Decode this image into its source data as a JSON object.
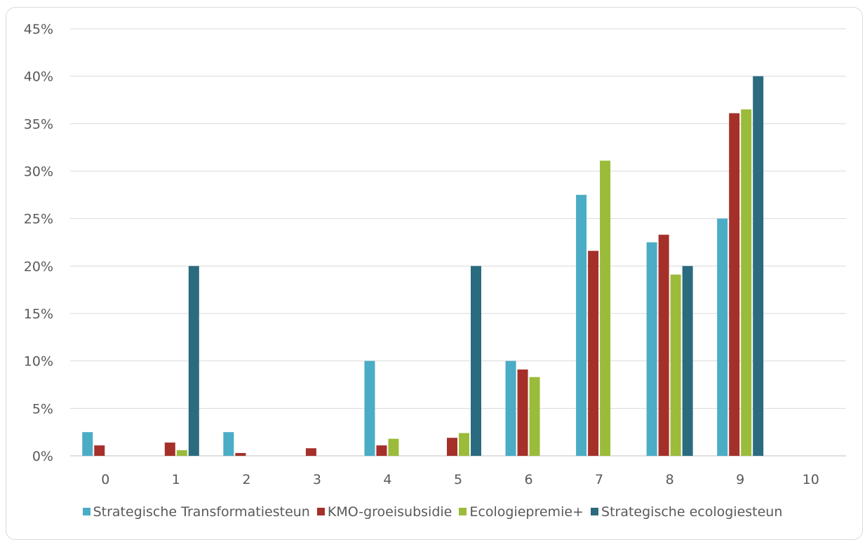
{
  "chart_data": {
    "type": "bar",
    "title": "",
    "xlabel": "",
    "ylabel": "",
    "categories": [
      "0",
      "1",
      "2",
      "3",
      "4",
      "5",
      "6",
      "7",
      "8",
      "9",
      "10"
    ],
    "ylim": [
      0,
      45
    ],
    "yticks": [
      "0%",
      "5%",
      "10%",
      "15%",
      "20%",
      "25%",
      "30%",
      "35%",
      "40%",
      "45%"
    ],
    "grid": true,
    "legend_position": "bottom",
    "series": [
      {
        "name": "Strategische Transformatiesteun",
        "color": "#4bacc6",
        "values": [
          2.5,
          0,
          2.5,
          0,
          10,
          0,
          10,
          27.5,
          22.5,
          25,
          0
        ]
      },
      {
        "name": "KMO-groeisubsidie",
        "color": "#a5302a",
        "values": [
          1.1,
          1.4,
          0.3,
          0.8,
          1.1,
          1.9,
          9.1,
          21.6,
          23.3,
          36.1,
          0
        ]
      },
      {
        "name": "Ecologiepremie+",
        "color": "#9bbb3b",
        "values": [
          0,
          0.6,
          0,
          0,
          1.8,
          2.4,
          8.3,
          31.1,
          19.1,
          36.5,
          0
        ]
      },
      {
        "name": "Strategische ecologiesteun",
        "color": "#2b6b7f",
        "values": [
          0,
          20,
          0,
          0,
          0,
          20,
          0,
          0,
          20,
          40,
          0
        ]
      }
    ]
  }
}
